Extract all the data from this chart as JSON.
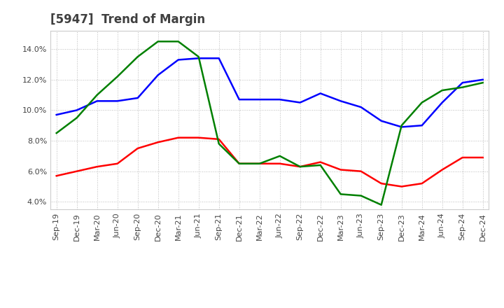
{
  "title": "[5947]  Trend of Margin",
  "x_labels": [
    "Sep-19",
    "Dec-19",
    "Mar-20",
    "Jun-20",
    "Sep-20",
    "Dec-20",
    "Mar-21",
    "Jun-21",
    "Sep-21",
    "Dec-21",
    "Mar-22",
    "Jun-22",
    "Sep-22",
    "Dec-22",
    "Mar-23",
    "Jun-23",
    "Sep-23",
    "Dec-23",
    "Mar-24",
    "Jun-24",
    "Sep-24",
    "Dec-24"
  ],
  "ordinary_income": [
    9.7,
    10.0,
    10.6,
    10.6,
    10.8,
    12.3,
    13.3,
    13.4,
    13.4,
    10.7,
    10.7,
    10.7,
    10.5,
    11.1,
    10.6,
    10.2,
    9.3,
    8.9,
    9.0,
    10.5,
    11.8,
    12.0
  ],
  "net_income": [
    5.7,
    6.0,
    6.3,
    6.5,
    7.5,
    7.9,
    8.2,
    8.2,
    8.1,
    6.5,
    6.5,
    6.5,
    6.3,
    6.6,
    6.1,
    6.0,
    5.2,
    5.0,
    5.2,
    6.1,
    6.9,
    6.9
  ],
  "operating_cashflow": [
    8.5,
    9.5,
    11.0,
    12.2,
    13.5,
    14.5,
    14.5,
    13.5,
    7.8,
    6.5,
    6.5,
    7.0,
    6.3,
    6.4,
    4.5,
    4.4,
    3.8,
    9.0,
    10.5,
    11.3,
    11.5,
    11.8
  ],
  "ylim": [
    3.5,
    15.2
  ],
  "yticks": [
    4.0,
    6.0,
    8.0,
    10.0,
    12.0,
    14.0
  ],
  "line_color_blue": "#0000FF",
  "line_color_red": "#FF0000",
  "line_color_green": "#008000",
  "background_color": "#FFFFFF",
  "grid_color": "#BBBBBB",
  "title_color": "#404040",
  "title_fontsize": 12,
  "tick_fontsize": 8,
  "legend_fontsize": 9
}
